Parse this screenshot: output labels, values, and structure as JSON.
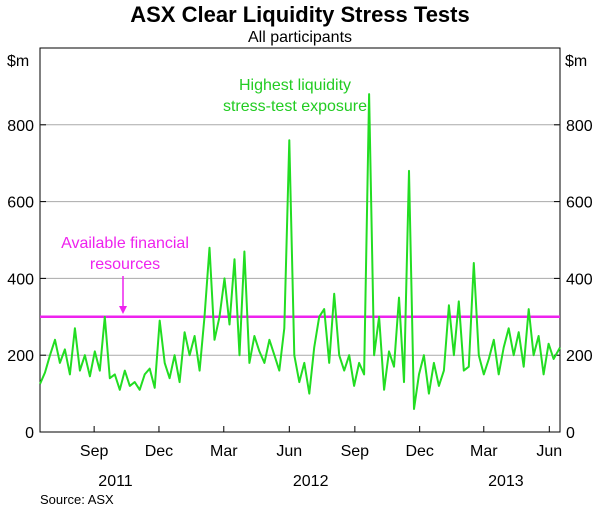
{
  "chart_data": {
    "type": "line",
    "title": "ASX Clear Liquidity Stress Tests",
    "subtitle": "All participants",
    "ylabel_left": "$m",
    "ylabel_right": "$m",
    "ylim": [
      0,
      1000
    ],
    "yticks": [
      "0",
      "200",
      "400",
      "600",
      "800"
    ],
    "ytick_values": [
      0,
      200,
      400,
      600,
      800
    ],
    "grid": true,
    "month_ticks": [
      {
        "label": "Sep",
        "date": "2011-09"
      },
      {
        "label": "Dec",
        "date": "2011-12"
      },
      {
        "label": "Mar",
        "date": "2012-03"
      },
      {
        "label": "Jun",
        "date": "2012-06"
      },
      {
        "label": "Sep",
        "date": "2012-09"
      },
      {
        "label": "Dec",
        "date": "2012-12"
      },
      {
        "label": "Mar",
        "date": "2013-03"
      },
      {
        "label": "Jun",
        "date": "2013-06"
      }
    ],
    "year_labels": [
      {
        "label": "2011",
        "center": "2011-10"
      },
      {
        "label": "2012",
        "center": "2012-07"
      },
      {
        "label": "2013",
        "center": "2013-04"
      }
    ],
    "x_range": [
      "2011-07-01",
      "2013-06-30"
    ],
    "series": [
      {
        "name": "Highest liquidity stress-test exposure",
        "color": "#22dd22",
        "points": [
          [
            "2011-07-01",
            125
          ],
          [
            "2011-07-08",
            155
          ],
          [
            "2011-07-15",
            200
          ],
          [
            "2011-07-22",
            240
          ],
          [
            "2011-07-29",
            180
          ],
          [
            "2011-08-05",
            215
          ],
          [
            "2011-08-12",
            150
          ],
          [
            "2011-08-19",
            270
          ],
          [
            "2011-08-26",
            160
          ],
          [
            "2011-09-02",
            200
          ],
          [
            "2011-09-09",
            145
          ],
          [
            "2011-09-16",
            210
          ],
          [
            "2011-09-23",
            160
          ],
          [
            "2011-09-30",
            300
          ],
          [
            "2011-10-07",
            140
          ],
          [
            "2011-10-14",
            150
          ],
          [
            "2011-10-21",
            110
          ],
          [
            "2011-10-28",
            160
          ],
          [
            "2011-11-04",
            120
          ],
          [
            "2011-11-11",
            130
          ],
          [
            "2011-11-18",
            110
          ],
          [
            "2011-11-25",
            150
          ],
          [
            "2011-12-02",
            165
          ],
          [
            "2011-12-09",
            115
          ],
          [
            "2011-12-16",
            290
          ],
          [
            "2011-12-23",
            180
          ],
          [
            "2011-12-30",
            140
          ],
          [
            "2012-01-06",
            200
          ],
          [
            "2012-01-13",
            130
          ],
          [
            "2012-01-20",
            260
          ],
          [
            "2012-01-27",
            200
          ],
          [
            "2012-02-03",
            250
          ],
          [
            "2012-02-10",
            160
          ],
          [
            "2012-02-17",
            300
          ],
          [
            "2012-02-24",
            480
          ],
          [
            "2012-03-02",
            240
          ],
          [
            "2012-03-09",
            300
          ],
          [
            "2012-03-16",
            400
          ],
          [
            "2012-03-23",
            280
          ],
          [
            "2012-03-30",
            450
          ],
          [
            "2012-04-06",
            200
          ],
          [
            "2012-04-13",
            470
          ],
          [
            "2012-04-20",
            180
          ],
          [
            "2012-04-27",
            250
          ],
          [
            "2012-05-04",
            210
          ],
          [
            "2012-05-11",
            180
          ],
          [
            "2012-05-18",
            240
          ],
          [
            "2012-05-25",
            200
          ],
          [
            "2012-06-01",
            160
          ],
          [
            "2012-06-08",
            270
          ],
          [
            "2012-06-15",
            760
          ],
          [
            "2012-06-22",
            200
          ],
          [
            "2012-06-29",
            130
          ],
          [
            "2012-07-06",
            180
          ],
          [
            "2012-07-13",
            100
          ],
          [
            "2012-07-20",
            220
          ],
          [
            "2012-07-27",
            300
          ],
          [
            "2012-08-03",
            320
          ],
          [
            "2012-08-10",
            180
          ],
          [
            "2012-08-17",
            360
          ],
          [
            "2012-08-24",
            200
          ],
          [
            "2012-08-31",
            160
          ],
          [
            "2012-09-07",
            200
          ],
          [
            "2012-09-14",
            120
          ],
          [
            "2012-09-21",
            180
          ],
          [
            "2012-09-28",
            150
          ],
          [
            "2012-10-05",
            880
          ],
          [
            "2012-10-12",
            200
          ],
          [
            "2012-10-19",
            300
          ],
          [
            "2012-10-26",
            110
          ],
          [
            "2012-11-02",
            210
          ],
          [
            "2012-11-09",
            170
          ],
          [
            "2012-11-16",
            350
          ],
          [
            "2012-11-23",
            130
          ],
          [
            "2012-11-30",
            680
          ],
          [
            "2012-12-07",
            60
          ],
          [
            "2012-12-14",
            150
          ],
          [
            "2012-12-21",
            200
          ],
          [
            "2012-12-28",
            100
          ],
          [
            "2013-01-04",
            180
          ],
          [
            "2013-01-11",
            120
          ],
          [
            "2013-01-18",
            160
          ],
          [
            "2013-01-25",
            330
          ],
          [
            "2013-02-01",
            200
          ],
          [
            "2013-02-08",
            340
          ],
          [
            "2013-02-15",
            160
          ],
          [
            "2013-02-22",
            170
          ],
          [
            "2013-03-01",
            440
          ],
          [
            "2013-03-08",
            200
          ],
          [
            "2013-03-15",
            150
          ],
          [
            "2013-03-22",
            190
          ],
          [
            "2013-03-29",
            240
          ],
          [
            "2013-04-05",
            150
          ],
          [
            "2013-04-12",
            220
          ],
          [
            "2013-04-19",
            270
          ],
          [
            "2013-04-26",
            200
          ],
          [
            "2013-05-03",
            260
          ],
          [
            "2013-05-10",
            170
          ],
          [
            "2013-05-17",
            320
          ],
          [
            "2013-05-24",
            200
          ],
          [
            "2013-05-31",
            250
          ],
          [
            "2013-06-07",
            150
          ],
          [
            "2013-06-14",
            230
          ],
          [
            "2013-06-21",
            190
          ],
          [
            "2013-06-30",
            220
          ]
        ]
      }
    ],
    "reference_line": {
      "label": "Available financial resources",
      "value": 300,
      "color": "#ee22ee"
    }
  },
  "annotations": {
    "series_label_line1": "Highest liquidity",
    "series_label_line2": "stress-test exposure",
    "reference_label_line1": "Available financial",
    "reference_label_line2": "resources"
  },
  "source": "Source: ASX"
}
